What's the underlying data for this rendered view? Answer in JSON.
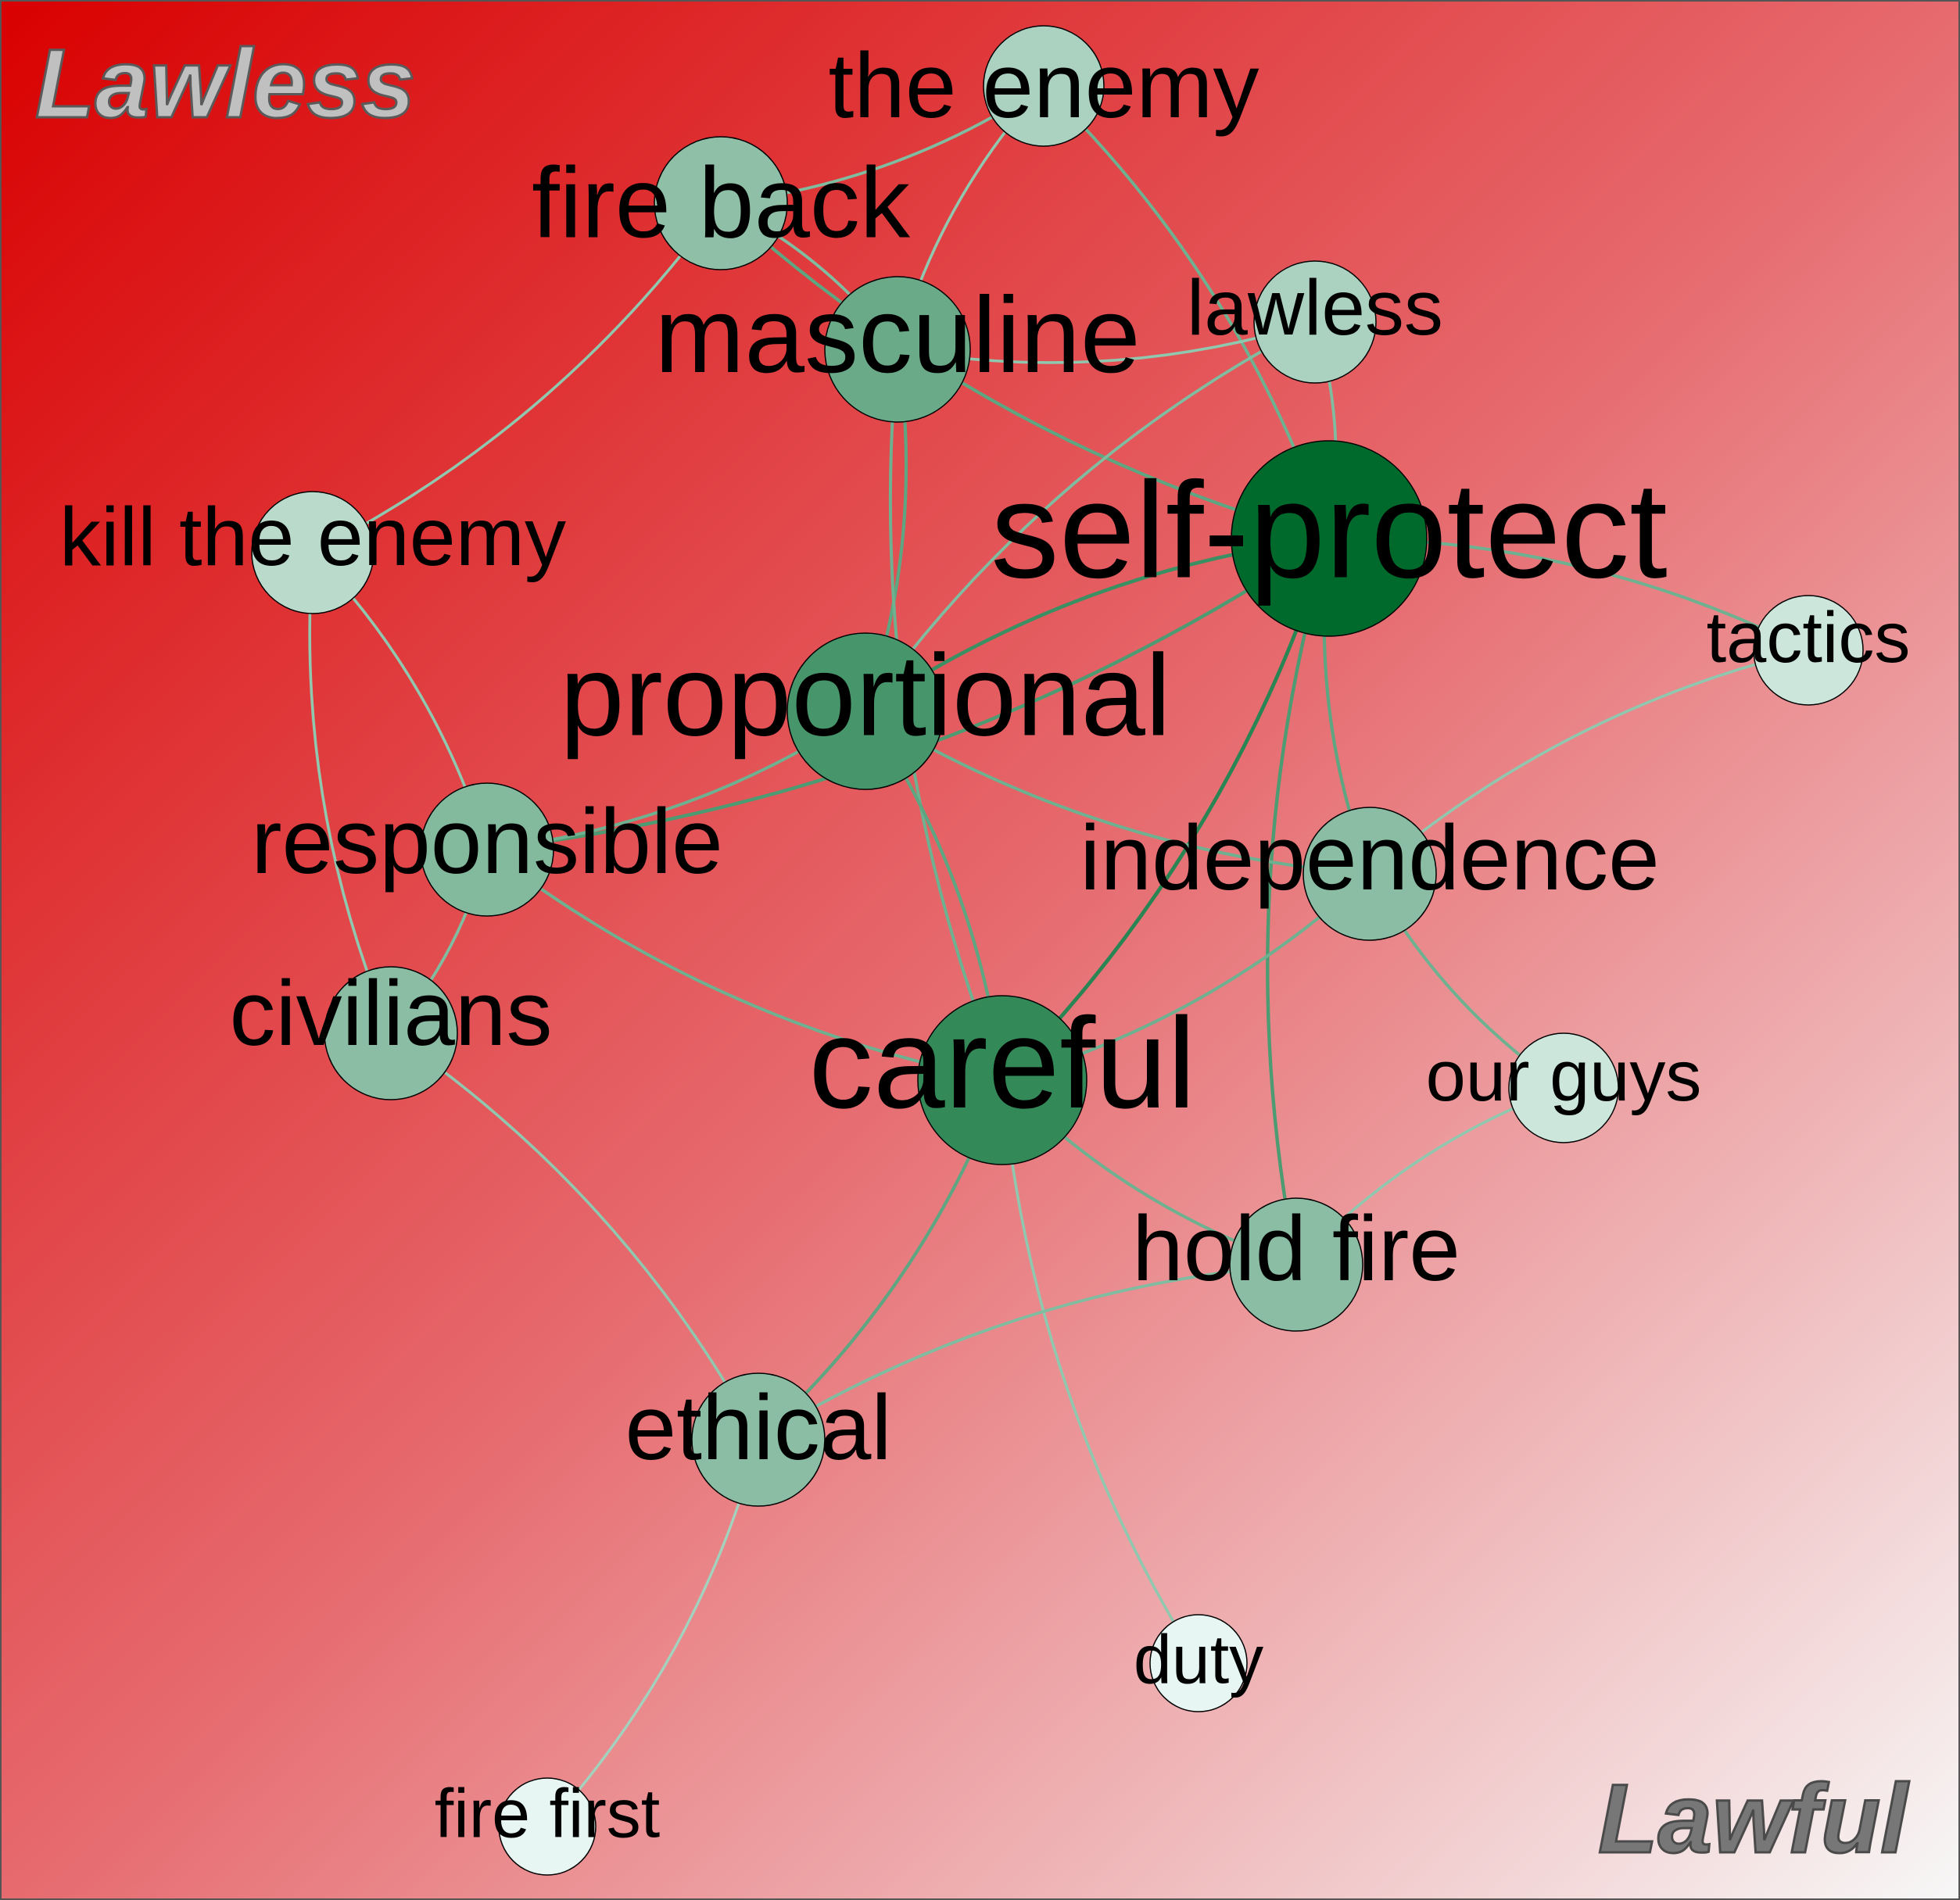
{
  "corners": {
    "top_left": "Lawless",
    "bottom_right": "Lawful"
  },
  "colors": {
    "background_top_left": "#d90000",
    "background_mid": "#e66a6e",
    "background_bottom_right": "#f7f7f7",
    "frame": "#555555",
    "corner_top_left_fill": "#c0c0c0",
    "corner_bottom_right_fill": "#777777",
    "node_darkest": "#00692c",
    "node_lightest": "#eefaf9"
  },
  "nodes": [
    {
      "id": "the-enemy",
      "label": "the enemy",
      "shade": 0.28
    },
    {
      "id": "fire-back",
      "label": "fire back",
      "shade": 0.4
    },
    {
      "id": "lawless",
      "label": "lawless",
      "shade": 0.28
    },
    {
      "id": "masculine",
      "label": "masculine",
      "shade": 0.55
    },
    {
      "id": "kill-the-enemy",
      "label": "kill the enemy",
      "shade": 0.22
    },
    {
      "id": "self-protect",
      "label": "self-protect",
      "shade": 1.0
    },
    {
      "id": "tactics",
      "label": "tactics",
      "shade": 0.14
    },
    {
      "id": "proportional",
      "label": "proportional",
      "shade": 0.7
    },
    {
      "id": "responsible",
      "label": "responsible",
      "shade": 0.45
    },
    {
      "id": "independence",
      "label": "independence",
      "shade": 0.42
    },
    {
      "id": "civilians",
      "label": "civilians",
      "shade": 0.42
    },
    {
      "id": "careful",
      "label": "careful",
      "shade": 0.78
    },
    {
      "id": "our-guys",
      "label": "our guys",
      "shade": 0.14
    },
    {
      "id": "hold-fire",
      "label": "hold fire",
      "shade": 0.42
    },
    {
      "id": "ethical",
      "label": "ethical",
      "shade": 0.42
    },
    {
      "id": "duty",
      "label": "duty",
      "shade": 0.03
    },
    {
      "id": "fire-first",
      "label": "fire first",
      "shade": 0.03
    }
  ],
  "edges": [
    {
      "source": "fire-back",
      "target": "the-enemy",
      "weight": 0.4
    },
    {
      "source": "fire-back",
      "target": "masculine",
      "weight": 0.4
    },
    {
      "source": "fire-back",
      "target": "self-protect",
      "weight": 0.6
    },
    {
      "source": "fire-back",
      "target": "kill-the-enemy",
      "weight": 0.3
    },
    {
      "source": "the-enemy",
      "target": "masculine",
      "weight": 0.3
    },
    {
      "source": "the-enemy",
      "target": "self-protect",
      "weight": 0.5
    },
    {
      "source": "masculine",
      "target": "lawless",
      "weight": 0.3
    },
    {
      "source": "masculine",
      "target": "proportional",
      "weight": 0.6
    },
    {
      "source": "masculine",
      "target": "careful",
      "weight": 0.5
    },
    {
      "source": "lawless",
      "target": "self-protect",
      "weight": 0.4
    },
    {
      "source": "lawless",
      "target": "proportional",
      "weight": 0.4
    },
    {
      "source": "kill-the-enemy",
      "target": "responsible",
      "weight": 0.3
    },
    {
      "source": "kill-the-enemy",
      "target": "civilians",
      "weight": 0.3
    },
    {
      "source": "self-protect",
      "target": "tactics",
      "weight": 0.5
    },
    {
      "source": "self-protect",
      "target": "proportional",
      "weight": 0.8
    },
    {
      "source": "self-protect",
      "target": "responsible",
      "weight": 0.7
    },
    {
      "source": "self-protect",
      "target": "independence",
      "weight": 0.6
    },
    {
      "source": "self-protect",
      "target": "careful",
      "weight": 0.9
    },
    {
      "source": "self-protect",
      "target": "hold-fire",
      "weight": 0.7
    },
    {
      "source": "proportional",
      "target": "responsible",
      "weight": 0.5
    },
    {
      "source": "proportional",
      "target": "independence",
      "weight": 0.5
    },
    {
      "source": "proportional",
      "target": "careful",
      "weight": 0.6
    },
    {
      "source": "tactics",
      "target": "independence",
      "weight": 0.3
    },
    {
      "source": "responsible",
      "target": "civilians",
      "weight": 0.4
    },
    {
      "source": "responsible",
      "target": "careful",
      "weight": 0.5
    },
    {
      "source": "independence",
      "target": "careful",
      "weight": 0.5
    },
    {
      "source": "independence",
      "target": "our-guys",
      "weight": 0.5
    },
    {
      "source": "civilians",
      "target": "ethical",
      "weight": 0.3
    },
    {
      "source": "careful",
      "target": "hold-fire",
      "weight": 0.5
    },
    {
      "source": "careful",
      "target": "ethical",
      "weight": 0.6
    },
    {
      "source": "careful",
      "target": "duty",
      "weight": 0.3
    },
    {
      "source": "hold-fire",
      "target": "our-guys",
      "weight": 0.3
    },
    {
      "source": "hold-fire",
      "target": "ethical",
      "weight": 0.4
    },
    {
      "source": "ethical",
      "target": "fire-first",
      "weight": 0.2
    }
  ]
}
